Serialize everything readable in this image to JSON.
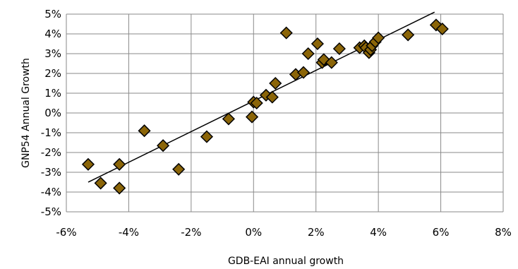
{
  "chart_data": {
    "type": "scatter",
    "title": "",
    "xlabel": "GDB-EAI annual growth",
    "ylabel": "GNP54 Annual Growth",
    "xlim": [
      -6,
      8
    ],
    "ylim": [
      -5,
      5
    ],
    "x_ticks": [
      "-6%",
      "-4%",
      "-2%",
      "0%",
      "2%",
      "4%",
      "6%",
      "8%"
    ],
    "y_ticks": [
      "5%",
      "4%",
      "3%",
      "2%",
      "1%",
      "0%",
      "-1%",
      "-2%",
      "-3%",
      "-4%",
      "-5%"
    ],
    "grid": true,
    "legend": "none",
    "marker": "diamond",
    "marker_color": "#8B6508",
    "trendline": {
      "type": "linear",
      "x": [
        -5.3,
        5.8
      ],
      "y": [
        -3.5,
        5.1
      ]
    },
    "series": [
      {
        "x": [
          -5.3,
          -4.9,
          -4.3,
          -4.3,
          -3.5,
          -2.9,
          -2.4,
          -1.5,
          -0.8,
          -0.05,
          0.0,
          0.1,
          0.4,
          0.6,
          0.7,
          1.05,
          1.35,
          1.6,
          1.75,
          2.05,
          2.2,
          2.25,
          2.5,
          2.75,
          3.4,
          3.55,
          3.6,
          3.7,
          3.75,
          3.8,
          3.9,
          4.0,
          4.95,
          5.85,
          6.05
        ],
        "y": [
          -2.6,
          -3.55,
          -2.6,
          -3.8,
          -0.9,
          -1.65,
          -2.85,
          -1.2,
          -0.3,
          -0.2,
          0.55,
          0.5,
          0.9,
          0.8,
          1.5,
          4.05,
          1.95,
          2.05,
          3.0,
          3.5,
          2.55,
          2.7,
          2.55,
          3.25,
          3.3,
          3.4,
          3.3,
          3.05,
          3.2,
          3.4,
          3.6,
          3.8,
          3.95,
          4.45,
          4.25
        ]
      }
    ]
  }
}
